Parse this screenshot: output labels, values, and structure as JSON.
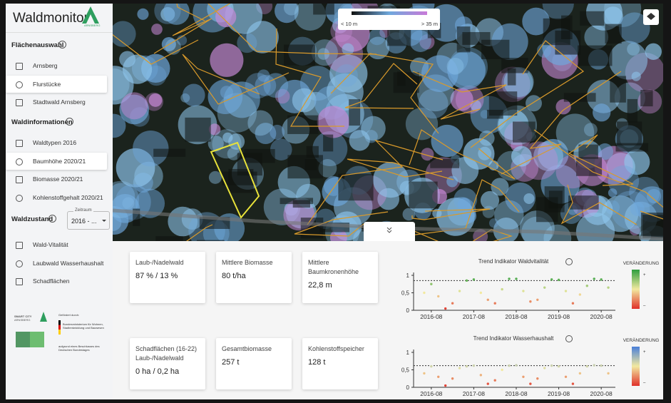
{
  "sidebar": {
    "logo": {
      "title": "Waldmonitor",
      "subtitle": "ARNSBERG"
    },
    "sections": [
      {
        "title": "Flächenauswahl",
        "items": [
          "Arnsberg",
          "Flurstücke",
          "Stadtwald Arnsberg"
        ],
        "selected": 1
      },
      {
        "title": "Waldinformationen",
        "items": [
          "Waldtypen 2016",
          "Baumhöhe 2020/21",
          "Biomasse 2020/21",
          "Kohlenstoffgehalt 2020/21"
        ],
        "selected": 1
      },
      {
        "title": "Waldzustand",
        "items": [
          "Wald-Vitalität",
          "Laubwald Wasserhaushalt",
          "Schadflächen"
        ]
      }
    ],
    "period_select": {
      "label": "Zeitraum",
      "value": "2016 - ..."
    },
    "footer": {
      "smart_city": "SMART CITY",
      "smart_city_sub": "ARNSBERG",
      "funded_by": "Gefördert durch:",
      "ministry": "Bundesministerium für Wohnen, Stadtentwicklung und Bauwesen",
      "resolution": "aufgrund eines Beschlusses des Deutschen Bundestages"
    }
  },
  "map": {
    "legend": {
      "min_label": "< 10 m",
      "max_label": "> 35 m"
    }
  },
  "cards": [
    {
      "label": "Laub-/Nadelwald",
      "value": "87 % / 13 %"
    },
    {
      "label": "Mittlere Biomasse",
      "value": "80 t/ha"
    },
    {
      "label": "Mittlere Baumkronenhöhe",
      "value": "22,8 m"
    },
    {
      "label": "Schadflächen (16-22)\nLaub-/Nadelwald",
      "value": "0 ha / 0,2 ha"
    },
    {
      "label": "Gesamtbiomasse",
      "value": "257 t"
    },
    {
      "label": "Kohlenstoffspeicher",
      "value": "128 t"
    }
  ],
  "charts": [
    {
      "type": "scatter",
      "title": "Trend Indikator Waldvitalität",
      "x": [
        "2016-06",
        "2016-08",
        "2016-10",
        "2016-12",
        "2017-02",
        "2017-04",
        "2017-06",
        "2017-08",
        "2017-10",
        "2017-12",
        "2018-02",
        "2018-04",
        "2018-06",
        "2018-08",
        "2018-10",
        "2018-12",
        "2019-02",
        "2019-04",
        "2019-06",
        "2019-08",
        "2019-10",
        "2019-12",
        "2020-02",
        "2020-04",
        "2020-06",
        "2020-08",
        "2020-10"
      ],
      "values": [
        0.5,
        0.75,
        0.4,
        0.05,
        0.2,
        0.55,
        0.85,
        0.88,
        0.5,
        0.3,
        0.2,
        0.6,
        0.9,
        0.9,
        0.55,
        0.25,
        0.3,
        0.65,
        0.88,
        0.87,
        0.55,
        0.2,
        0.45,
        0.7,
        0.9,
        0.88,
        0.65
      ],
      "reference": 0.85,
      "xlim": [
        "2016-03",
        "2020-12"
      ],
      "ylim": [
        0,
        1
      ],
      "yticks": [
        0,
        {
          "value": 0.5,
          "label": "0,5"
        },
        1
      ],
      "xticks": [
        "2016-08",
        "2017-08",
        "2018-08",
        "2019-08",
        "2020-08"
      ],
      "color_high": "#2e9e3e",
      "color_mid": "#f2e9a0",
      "color_low": "#e0302a",
      "legend": {
        "title": "VERÄNDERUNG",
        "plus": "+",
        "minus": "–"
      }
    },
    {
      "type": "scatter",
      "title": "Trend Indikator Wasserhaushalt",
      "x": [
        "2016-06",
        "2016-08",
        "2016-10",
        "2016-12",
        "2017-02",
        "2017-04",
        "2017-06",
        "2017-08",
        "2017-10",
        "2017-12",
        "2018-02",
        "2018-04",
        "2018-06",
        "2018-08",
        "2018-10",
        "2018-12",
        "2019-02",
        "2019-04",
        "2019-06",
        "2019-08",
        "2019-10",
        "2019-12",
        "2020-02",
        "2020-04",
        "2020-06",
        "2020-08",
        "2020-10"
      ],
      "values": [
        0.4,
        0.6,
        0.3,
        0.05,
        0.25,
        0.55,
        0.6,
        0.62,
        0.35,
        0.1,
        0.2,
        0.5,
        0.62,
        0.63,
        0.3,
        0.1,
        0.25,
        0.55,
        0.62,
        0.6,
        0.3,
        0.1,
        0.4,
        0.6,
        0.63,
        0.62,
        0.4
      ],
      "reference": 0.62,
      "xlim": [
        "2016-03",
        "2020-12"
      ],
      "ylim": [
        0,
        1
      ],
      "yticks": [
        0,
        {
          "value": 0.5,
          "label": "0,5"
        },
        1
      ],
      "xticks": [
        "2016-08",
        "2017-08",
        "2018-08",
        "2019-08",
        "2020-08"
      ],
      "color_high": "#4a7fd8",
      "color_mid": "#f2e9a0",
      "color_low": "#e0302a",
      "legend": {
        "title": "VERÄNDERUNG",
        "plus": "+",
        "minus": "–"
      }
    }
  ]
}
